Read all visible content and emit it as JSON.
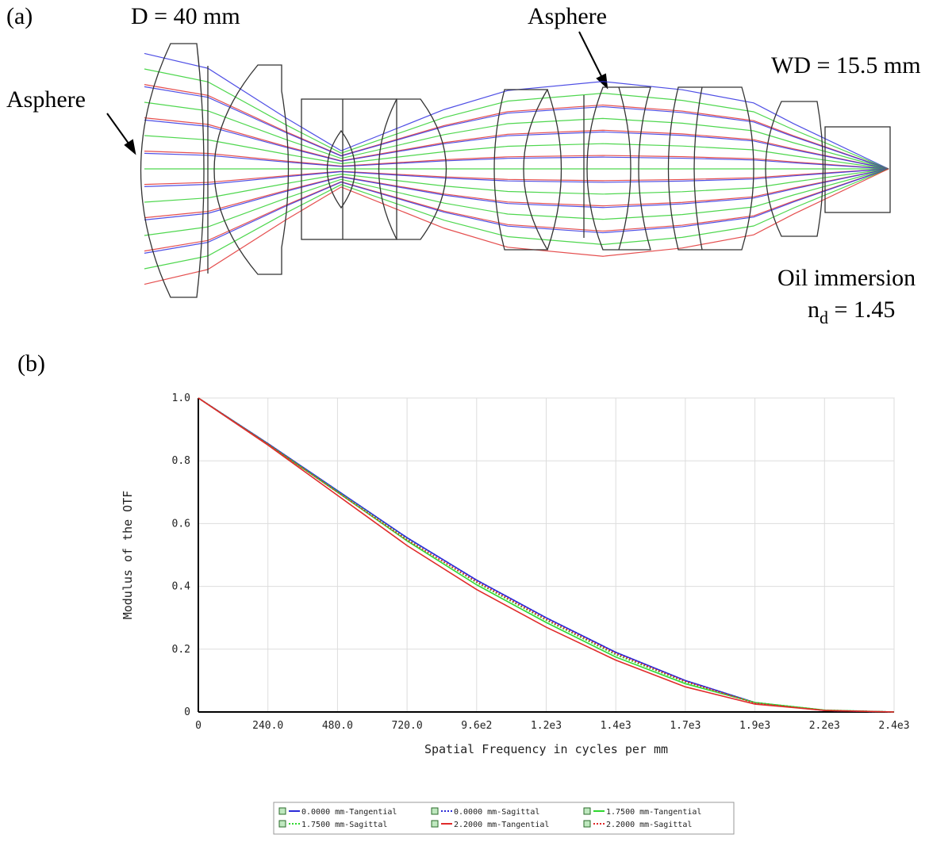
{
  "panel_a": {
    "label": "(a)",
    "diameter": "D = 40 mm",
    "asphere_left": "Asphere",
    "asphere_top": "Asphere",
    "working_distance": "WD = 15.5 mm",
    "immersion": "Oil immersion",
    "index_symbol": "n",
    "index_subscript": "d",
    "index_value": " = 1.45"
  },
  "chart_data": {
    "type": "line",
    "panel_label": "(b)",
    "x_label": "Spatial Frequency in cycles per mm",
    "y_label": "Modulus of the OTF",
    "x": [
      0,
      240,
      480,
      720,
      960,
      1200,
      1440,
      1680,
      1920,
      2160,
      2400
    ],
    "xlim": [
      0,
      2400
    ],
    "ylim": [
      0,
      1
    ],
    "xticks": [
      0,
      {
        "value": 240,
        "label": "240.0"
      },
      {
        "value": 480,
        "label": "480.0"
      },
      {
        "value": 720,
        "label": "720.0"
      },
      {
        "value": 960,
        "label": "9.6e2"
      },
      {
        "value": 1200,
        "label": "1.2e3"
      },
      {
        "value": 1440,
        "label": "1.4e3"
      },
      {
        "value": 1680,
        "label": "1.7e3"
      },
      {
        "value": 1920,
        "label": "1.9e3"
      },
      {
        "value": 2160,
        "label": "2.2e3"
      },
      {
        "value": 2400,
        "label": "2.4e3"
      }
    ],
    "yticks": [
      0,
      0.2,
      0.4,
      0.6,
      0.8,
      {
        "value": 1,
        "label": "1.0"
      }
    ],
    "grid": true,
    "series": [
      {
        "name": "0.0000 mm-Tangential",
        "color": "#2a2ad8",
        "style": "solid",
        "values": [
          1,
          0.855,
          0.705,
          0.555,
          0.42,
          0.3,
          0.19,
          0.1,
          0.03,
          0.005,
          0
        ]
      },
      {
        "name": "0.0000 mm-Sagittal",
        "color": "#2a2ad8",
        "style": "dotted",
        "values": [
          1,
          0.855,
          0.705,
          0.555,
          0.42,
          0.3,
          0.19,
          0.1,
          0.03,
          0.005,
          0
        ]
      },
      {
        "name": "1.7500 mm-Tangential",
        "color": "#2ed82e",
        "style": "solid",
        "values": [
          1,
          0.852,
          0.7,
          0.545,
          0.405,
          0.285,
          0.175,
          0.09,
          0.03,
          0.006,
          0
        ]
      },
      {
        "name": "1.7500 mm-Sagittal",
        "color": "#2ed82e",
        "style": "dotted",
        "values": [
          1,
          0.854,
          0.703,
          0.55,
          0.412,
          0.292,
          0.182,
          0.095,
          0.03,
          0.006,
          0
        ]
      },
      {
        "name": "2.2000 mm-Tangential",
        "color": "#e02a2a",
        "style": "solid",
        "values": [
          1,
          0.85,
          0.69,
          0.53,
          0.39,
          0.27,
          0.165,
          0.08,
          0.025,
          0.005,
          0
        ]
      },
      {
        "name": "2.2000 mm-Sagittal",
        "color": "#e02a2a",
        "style": "dotted",
        "values": [
          1,
          0.853,
          0.7,
          0.548,
          0.415,
          0.295,
          0.186,
          0.097,
          0.028,
          0.005,
          0
        ]
      }
    ]
  }
}
